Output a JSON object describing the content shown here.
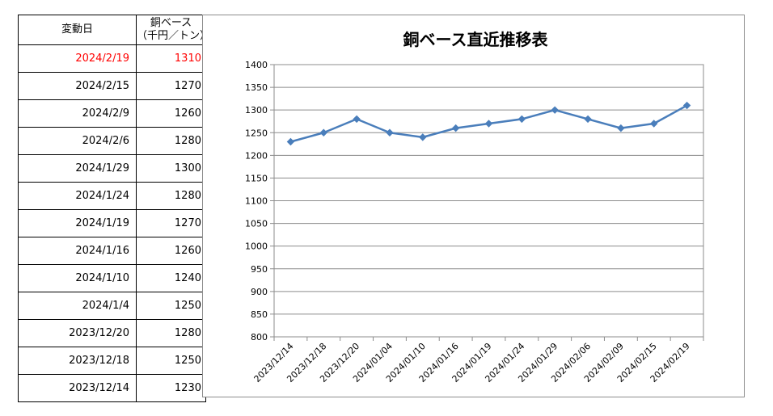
{
  "table": {
    "header_date": "変動日",
    "header_value_line1": "銅ベース",
    "header_value_line2": "（千円／トン）",
    "highlight_color": "#ff0000",
    "rows": [
      {
        "date": "2024/2/19",
        "value": "1310"
      },
      {
        "date": "2024/2/15",
        "value": "1270"
      },
      {
        "date": "2024/2/9",
        "value": "1260"
      },
      {
        "date": "2024/2/6",
        "value": "1280"
      },
      {
        "date": "2024/1/29",
        "value": "1300"
      },
      {
        "date": "2024/1/24",
        "value": "1280"
      },
      {
        "date": "2024/1/19",
        "value": "1270"
      },
      {
        "date": "2024/1/16",
        "value": "1260"
      },
      {
        "date": "2024/1/10",
        "value": "1240"
      },
      {
        "date": "2024/1/4",
        "value": "1250"
      },
      {
        "date": "2023/12/20",
        "value": "1280"
      },
      {
        "date": "2023/12/18",
        "value": "1250"
      },
      {
        "date": "2023/12/14",
        "value": "1230"
      }
    ]
  },
  "chart_data": {
    "type": "line",
    "title": "銅ベース直近推移表",
    "categories": [
      "2023/12/14",
      "2023/12/18",
      "2023/12/20",
      "2024/01/04",
      "2024/01/10",
      "2024/01/16",
      "2024/01/19",
      "2024/01/24",
      "2024/01/29",
      "2024/02/06",
      "2024/02/09",
      "2024/02/15",
      "2024/02/19"
    ],
    "series": [
      {
        "values": [
          1230,
          1250,
          1280,
          1250,
          1240,
          1260,
          1270,
          1280,
          1300,
          1280,
          1260,
          1270,
          1310
        ]
      }
    ],
    "ylim": [
      800,
      1400
    ],
    "yticks": [
      "800",
      "850",
      "900",
      "950",
      "1000",
      "1050",
      "1100",
      "1150",
      "1200",
      "1250",
      "1300",
      "1350",
      "1400"
    ],
    "grid": true,
    "legend": "none",
    "line_color": "#4a7ebb"
  }
}
